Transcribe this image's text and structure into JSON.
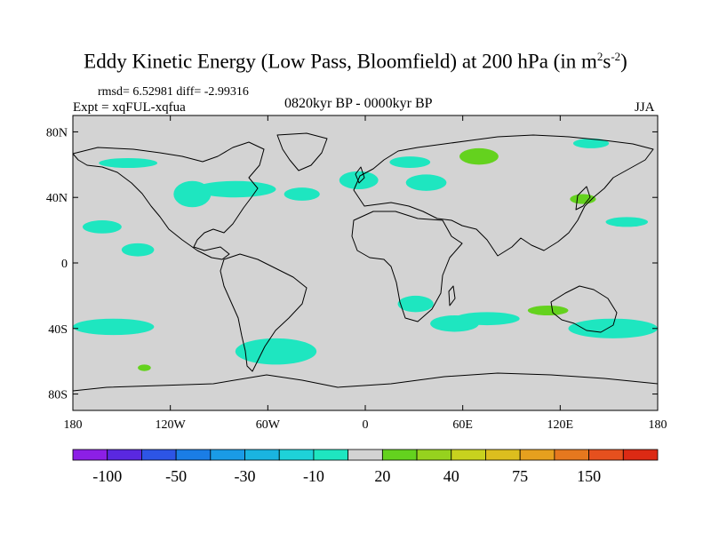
{
  "title_main": "Eddy Kinetic Energy (Low Pass, Bloomfield) at 200 hPa (in m",
  "title_sup1": "2",
  "title_mid": "s",
  "title_sup2": "-2",
  "title_end": ")",
  "stats": "rmsd= 6.52981 diff= -2.99316",
  "expt": "Expt = xqFUL-xqfua",
  "period": "0820kyr BP - 0000kyr BP",
  "season": "JJA",
  "chart_data": {
    "type": "heatmap",
    "projection": "cylindrical equidistant",
    "x_ticks": [
      {
        "lon": -180,
        "label": "180"
      },
      {
        "lon": -120,
        "label": "120W"
      },
      {
        "lon": -60,
        "label": "60W"
      },
      {
        "lon": 0,
        "label": "0"
      },
      {
        "lon": 60,
        "label": "60E"
      },
      {
        "lon": 120,
        "label": "120E"
      },
      {
        "lon": 180,
        "label": "180"
      }
    ],
    "y_ticks": [
      {
        "lat": 80,
        "label": "80N"
      },
      {
        "lat": 40,
        "label": "40N"
      },
      {
        "lat": 0,
        "label": "0"
      },
      {
        "lat": -40,
        "label": "40S"
      },
      {
        "lat": -80,
        "label": "80S"
      }
    ],
    "colorbar": {
      "colors": [
        "#8c1fe6",
        "#5a28e0",
        "#2d55e6",
        "#1a7de6",
        "#1a9be6",
        "#1ab4e0",
        "#1ed2d8",
        "#1ee6c0",
        "#d3d3d3",
        "#64d21e",
        "#96d21e",
        "#c8d21e",
        "#dcbe1e",
        "#e6a01e",
        "#e6781e",
        "#e6501e",
        "#dc2a14"
      ],
      "tick_labels": [
        "-100",
        "-50",
        "-30",
        "-10",
        "20",
        "40",
        "75",
        "150"
      ],
      "tick_index": [
        1,
        3,
        5,
        7,
        9,
        11,
        13,
        15
      ]
    },
    "zero_color": "#d3d3d3",
    "land_color_line": "#000000",
    "anomalies": [
      {
        "lon": [
          -164,
          -128
        ],
        "lat": [
          58,
          64
        ],
        "bin": "-10"
      },
      {
        "lon": [
          -118,
          -95
        ],
        "lat": [
          34,
          50
        ],
        "bin": "-10"
      },
      {
        "lon": [
          -105,
          -55
        ],
        "lat": [
          40,
          50
        ],
        "bin": "-10"
      },
      {
        "lon": [
          -50,
          -28
        ],
        "lat": [
          38,
          46
        ],
        "bin": "-10"
      },
      {
        "lon": [
          -16,
          8
        ],
        "lat": [
          45,
          56
        ],
        "bin": "-10"
      },
      {
        "lon": [
          25,
          50
        ],
        "lat": [
          44,
          54
        ],
        "bin": "-10"
      },
      {
        "lon": [
          15,
          40
        ],
        "lat": [
          58,
          65
        ],
        "bin": "-10"
      },
      {
        "lon": [
          58,
          82
        ],
        "lat": [
          60,
          70
        ],
        "bin": "20"
      },
      {
        "lon": [
          128,
          150
        ],
        "lat": [
          70,
          76
        ],
        "bin": "-10"
      },
      {
        "lon": [
          126,
          142
        ],
        "lat": [
          36,
          42
        ],
        "bin": "20"
      },
      {
        "lon": [
          148,
          174
        ],
        "lat": [
          22,
          28
        ],
        "bin": "-10"
      },
      {
        "lon": [
          -174,
          -150
        ],
        "lat": [
          18,
          26
        ],
        "bin": "-10"
      },
      {
        "lon": [
          -150,
          -130
        ],
        "lat": [
          4,
          12
        ],
        "bin": "-10"
      },
      {
        "lon": [
          20,
          42
        ],
        "lat": [
          -30,
          -20
        ],
        "bin": "-10"
      },
      {
        "lon": [
          40,
          70
        ],
        "lat": [
          -42,
          -32
        ],
        "bin": "-10"
      },
      {
        "lon": [
          55,
          95
        ],
        "lat": [
          -38,
          -30
        ],
        "bin": "-10"
      },
      {
        "lon": [
          100,
          125
        ],
        "lat": [
          -32,
          -26
        ],
        "bin": "20"
      },
      {
        "lon": [
          125,
          180
        ],
        "lat": [
          -46,
          -34
        ],
        "bin": "-10"
      },
      {
        "lon": [
          -180,
          -130
        ],
        "lat": [
          -44,
          -34
        ],
        "bin": "-10"
      },
      {
        "lon": [
          -80,
          -30
        ],
        "lat": [
          -62,
          -46
        ],
        "bin": "-10"
      },
      {
        "lon": [
          -140,
          -132
        ],
        "lat": [
          -66,
          -62
        ],
        "bin": "20"
      }
    ]
  }
}
